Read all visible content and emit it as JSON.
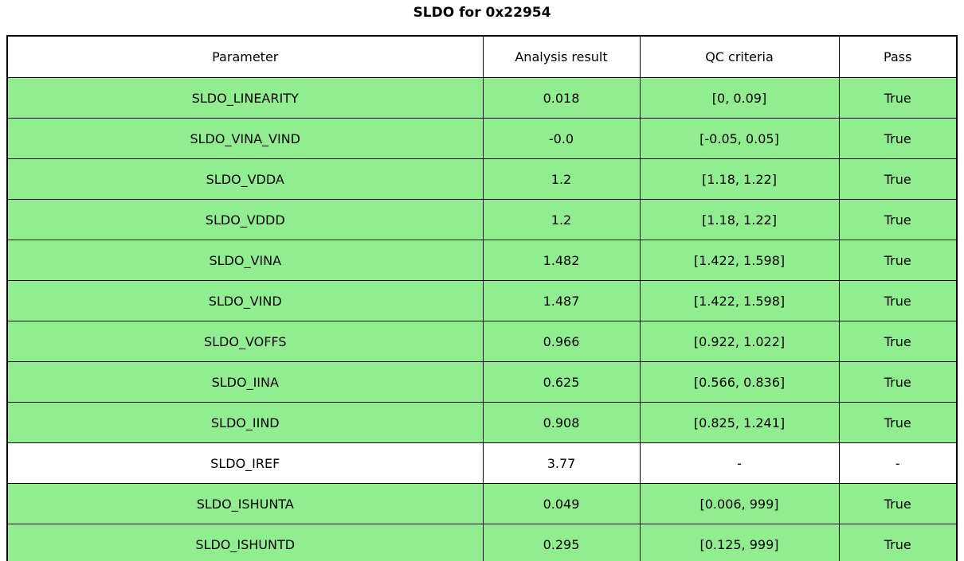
{
  "chart_data": {
    "type": "table",
    "title": "SLDO for 0x22954",
    "columns": [
      "Parameter",
      "Analysis result",
      "QC criteria",
      "Pass"
    ],
    "highlight_color": "#90EE90",
    "header_bg": "#FFFFFF",
    "border_color": "#000000",
    "rows": [
      {
        "parameter": "SLDO_LINEARITY",
        "result": "0.018",
        "criteria": "[0, 0.09]",
        "pass": "True",
        "highlight": true
      },
      {
        "parameter": "SLDO_VINA_VIND",
        "result": "-0.0",
        "criteria": "[-0.05, 0.05]",
        "pass": "True",
        "highlight": true
      },
      {
        "parameter": "SLDO_VDDA",
        "result": "1.2",
        "criteria": "[1.18, 1.22]",
        "pass": "True",
        "highlight": true
      },
      {
        "parameter": "SLDO_VDDD",
        "result": "1.2",
        "criteria": "[1.18, 1.22]",
        "pass": "True",
        "highlight": true
      },
      {
        "parameter": "SLDO_VINA",
        "result": "1.482",
        "criteria": "[1.422, 1.598]",
        "pass": "True",
        "highlight": true
      },
      {
        "parameter": "SLDO_VIND",
        "result": "1.487",
        "criteria": "[1.422, 1.598]",
        "pass": "True",
        "highlight": true
      },
      {
        "parameter": "SLDO_VOFFS",
        "result": "0.966",
        "criteria": "[0.922, 1.022]",
        "pass": "True",
        "highlight": true
      },
      {
        "parameter": "SLDO_IINA",
        "result": "0.625",
        "criteria": "[0.566, 0.836]",
        "pass": "True",
        "highlight": true
      },
      {
        "parameter": "SLDO_IIND",
        "result": "0.908",
        "criteria": "[0.825, 1.241]",
        "pass": "True",
        "highlight": true
      },
      {
        "parameter": "SLDO_IREF",
        "result": "3.77",
        "criteria": "-",
        "pass": "-",
        "highlight": false
      },
      {
        "parameter": "SLDO_ISHUNTA",
        "result": "0.049",
        "criteria": "[0.006, 999]",
        "pass": "True",
        "highlight": true
      },
      {
        "parameter": "SLDO_ISHUNTD",
        "result": "0.295",
        "criteria": "[0.125, 999]",
        "pass": "True",
        "highlight": true
      }
    ]
  }
}
